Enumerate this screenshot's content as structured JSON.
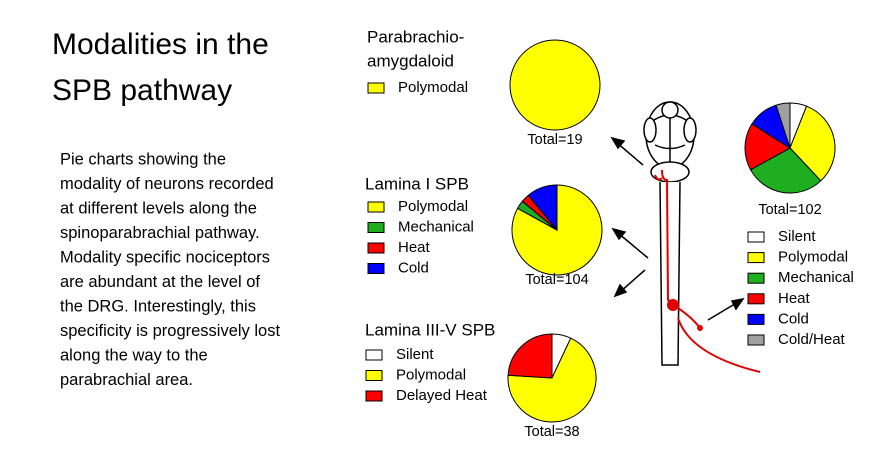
{
  "slide": {
    "title": [
      "Modalities in the",
      "SPB pathway"
    ],
    "text": [
      "Pie charts showing the",
      "modality of neurons recorded",
      "at different levels along the",
      "spinoparabrachial pathway.",
      "Modality specific nociceptors",
      "are abundant at the level of",
      "the DRG. Interestingly, this",
      "specificity is progressively lost",
      "along the way to the",
      "parabrachial area."
    ]
  },
  "chart_data": [
    {
      "type": "pie",
      "title": [
        "Parabrachio-",
        "amygdaloid"
      ],
      "categories": [
        "Polymodal"
      ],
      "values": [
        100
      ],
      "colors": [
        "#ffff00"
      ],
      "note": "Total=19"
    },
    {
      "type": "pie",
      "title": [
        "Lamina I SPB"
      ],
      "categories": [
        "Polymodal",
        "Mechanical",
        "Heat",
        "Cold"
      ],
      "values": [
        83,
        3,
        3,
        11
      ],
      "colors": [
        "#ffff00",
        "#1fae1f",
        "#ff0000",
        "#0000ff"
      ],
      "note": "Total=104"
    },
    {
      "type": "pie",
      "title": [
        "Lamina III-V SPB"
      ],
      "categories": [
        "Silent",
        "Polymodal",
        "Delayed Heat"
      ],
      "values": [
        7,
        69,
        24
      ],
      "colors": [
        "#ffffff",
        "#ffff00",
        "#ff0000"
      ],
      "note": "Total=38"
    },
    {
      "type": "pie",
      "categories": [
        "Silent",
        "Polymodal",
        "Mechanical",
        "Heat",
        "Cold",
        "Cold/Heat"
      ],
      "values": [
        6,
        32,
        29,
        17,
        11,
        5
      ],
      "colors": [
        "#ffffff",
        "#ffff00",
        "#1fae1f",
        "#ff0000",
        "#0000ff",
        "#a0a0a0"
      ],
      "note": "Total=102"
    }
  ]
}
